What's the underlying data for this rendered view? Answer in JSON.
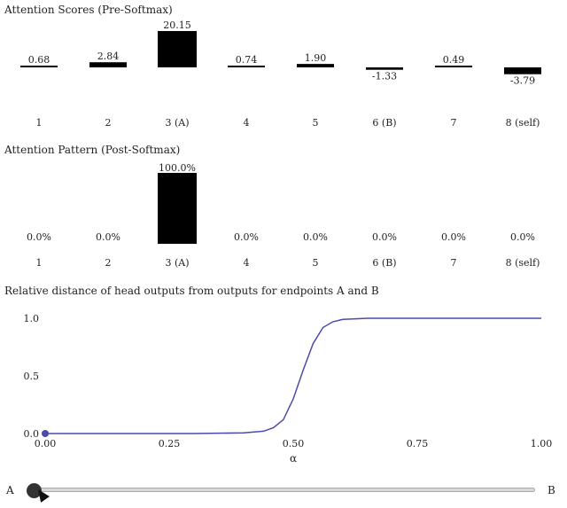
{
  "scores_title": "Attention Scores (Pre-Softmax)",
  "pattern_title": "Attention Pattern (Post-Softmax)",
  "distance_title": "Relative distance of head outputs from outputs for endpoints A and B",
  "slider": {
    "left_label": "A",
    "right_label": "B",
    "value": 0.0
  },
  "chart_data": [
    {
      "type": "bar",
      "title": "Attention Scores (Pre-Softmax)",
      "categories": [
        "1",
        "2",
        "3 (A)",
        "4",
        "5",
        "6 (B)",
        "7",
        "8 (self)"
      ],
      "values": [
        0.68,
        2.84,
        20.15,
        0.74,
        1.9,
        -1.33,
        0.49,
        -3.79
      ],
      "value_labels": [
        "0.68",
        "2.84",
        "20.15",
        "0.74",
        "1.90",
        "-1.33",
        "0.49",
        "-3.79"
      ],
      "bar_color": "#000000"
    },
    {
      "type": "bar",
      "title": "Attention Pattern (Post-Softmax)",
      "categories": [
        "1",
        "2",
        "3 (A)",
        "4",
        "5",
        "6 (B)",
        "7",
        "8 (self)"
      ],
      "values": [
        0.0,
        0.0,
        100.0,
        0.0,
        0.0,
        0.0,
        0.0,
        0.0
      ],
      "value_labels": [
        "0.0%",
        "0.0%",
        "100.0%",
        "0.0%",
        "0.0%",
        "0.0%",
        "0.0%",
        "0.0%"
      ],
      "bar_color": "#000000"
    },
    {
      "type": "line",
      "title": "Relative distance of head outputs from outputs for endpoints A and B",
      "xlabel": "α",
      "xlim": [
        0,
        1
      ],
      "ylim": [
        0,
        1
      ],
      "xticks": [
        "0.00",
        "0.25",
        "0.50",
        "0.75",
        "1.00"
      ],
      "yticks": [
        "0.0",
        "0.5",
        "1.0"
      ],
      "series": [
        {
          "color": "#4b4bab",
          "x": [
            0,
            0.3,
            0.4,
            0.44,
            0.46,
            0.48,
            0.5,
            0.52,
            0.54,
            0.56,
            0.58,
            0.6,
            0.65,
            0.7,
            1.0
          ],
          "y": [
            0,
            0,
            0.005,
            0.02,
            0.05,
            0.12,
            0.3,
            0.55,
            0.78,
            0.92,
            0.97,
            0.99,
            1.0,
            1.0,
            1.0
          ]
        }
      ],
      "marker": {
        "x": 0,
        "y": 0,
        "color": "#4b4bab"
      }
    }
  ]
}
